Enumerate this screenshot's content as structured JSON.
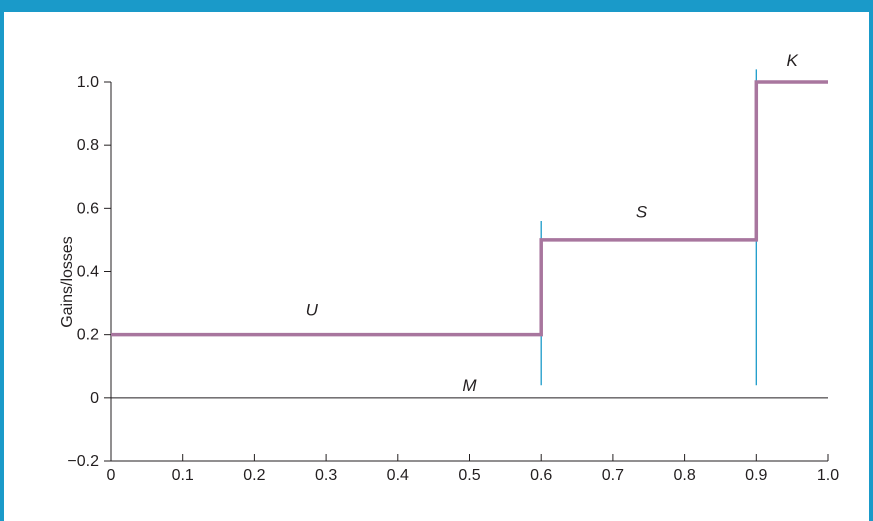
{
  "colors": {
    "frame": "#1a9ac9",
    "series": "#a8769e",
    "marker_lines": "#1a9ac9",
    "axes": "#231f20"
  },
  "chart_data": {
    "type": "line",
    "step": true,
    "xlabel": "",
    "ylabel": "Gains/losses",
    "xlim": [
      0,
      1.0
    ],
    "ylim": [
      -0.2,
      1.0
    ],
    "x_ticks": [
      "0",
      "0.1",
      "0.2",
      "0.3",
      "0.4",
      "0.5",
      "0.6",
      "0.7",
      "0.8",
      "0.9",
      "1.0"
    ],
    "y_ticks": [
      "−0.2",
      "0",
      "0.2",
      "0.4",
      "0.6",
      "0.8",
      "1.0"
    ],
    "x_tick_values": [
      0,
      0.1,
      0.2,
      0.3,
      0.4,
      0.5,
      0.6,
      0.7,
      0.8,
      0.9,
      1.0
    ],
    "y_tick_values": [
      -0.2,
      0,
      0.2,
      0.4,
      0.6,
      0.8,
      1.0
    ],
    "grid": false,
    "series": [
      {
        "x": [
          0,
          0.6,
          0.6,
          0.9,
          0.9,
          1.0
        ],
        "y": [
          0.2,
          0.2,
          0.5,
          0.5,
          1.0,
          1.0
        ]
      }
    ],
    "reference_line": {
      "y": 0
    },
    "vertical_markers": [
      {
        "x": 0.6,
        "y_range": [
          0.04,
          0.56
        ]
      },
      {
        "x": 0.9,
        "y_range": [
          0.04,
          1.04
        ]
      }
    ],
    "annotations": [
      {
        "text": "U",
        "x": 0.28,
        "y": 0.28
      },
      {
        "text": "M",
        "x": 0.5,
        "y": 0.04
      },
      {
        "text": "S",
        "x": 0.74,
        "y": 0.59
      },
      {
        "text": "K",
        "x": 0.95,
        "y": 1.07
      }
    ]
  }
}
